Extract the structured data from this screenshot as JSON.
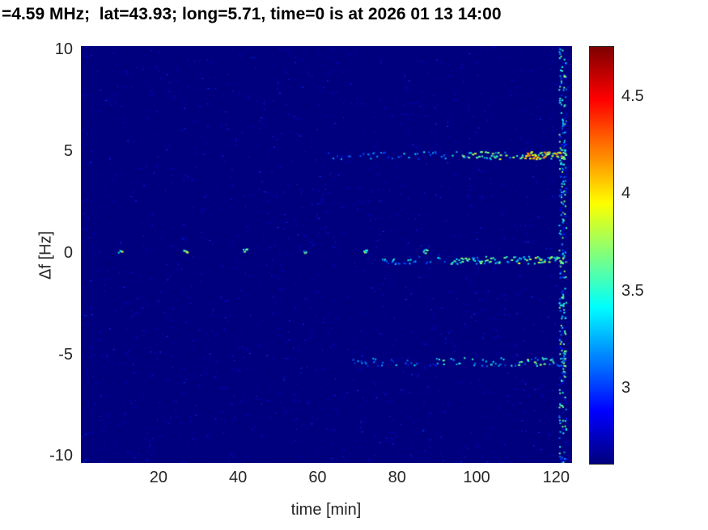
{
  "chart_data": {
    "type": "heatmap",
    "title": "=4.59 MHz;  lat=43.93; long=5.71, time=0 is at 2026 01 13 14:00",
    "xlabel": "time [min]",
    "ylabel": "Δf [Hz]",
    "xlim": [
      0.5,
      124
    ],
    "ylim": [
      -10.3,
      10.2
    ],
    "xticks": [
      20,
      40,
      60,
      80,
      100,
      120
    ],
    "yticks": [
      10,
      5,
      0,
      -5,
      -10
    ],
    "grid": false,
    "colorbar": {
      "colormap": "jet",
      "vmin": 2.62,
      "vmax": 4.76,
      "ticks": [
        4.5,
        4,
        3.5,
        3
      ],
      "position": "right"
    },
    "background_value": 2.62,
    "noise": {
      "count": 2600,
      "vmin": 2.66,
      "vmax": 3.02
    },
    "edge_artifact": {
      "x0": 120.6,
      "x1": 122.4,
      "count": 280,
      "vmin": 2.8,
      "vmax": 3.8
    },
    "streaks": [
      {
        "name": "upper-doppler-line",
        "y": 4.85,
        "y_jitter": 0.18,
        "segments": [
          {
            "x0": 62,
            "x1": 78,
            "density": 0.22,
            "vmin": 2.85,
            "vmax": 3.35
          },
          {
            "x0": 78,
            "x1": 96,
            "density": 0.32,
            "vmin": 2.95,
            "vmax": 3.55
          },
          {
            "x0": 96,
            "x1": 112,
            "density": 0.5,
            "vmin": 3.15,
            "vmax": 3.9
          },
          {
            "x0": 112,
            "x1": 122.3,
            "density": 0.85,
            "vmin": 3.5,
            "vmax": 4.25
          }
        ]
      },
      {
        "name": "carrier-pulse-dots",
        "y": 0.15,
        "y_jitter": 0.1,
        "segments": [
          {
            "x0": 9.6,
            "x1": 10.6,
            "density": 0.9,
            "vmin": 3.3,
            "vmax": 3.9
          },
          {
            "x0": 26.2,
            "x1": 27.2,
            "density": 0.9,
            "vmin": 3.3,
            "vmax": 3.9
          },
          {
            "x0": 41.2,
            "x1": 42.2,
            "density": 0.9,
            "vmin": 3.2,
            "vmax": 3.8
          },
          {
            "x0": 56.2,
            "x1": 57.2,
            "density": 0.9,
            "vmin": 3.2,
            "vmax": 3.8
          },
          {
            "x0": 71.5,
            "x1": 72.5,
            "density": 0.9,
            "vmin": 3.3,
            "vmax": 3.9
          },
          {
            "x0": 86.5,
            "x1": 87.5,
            "density": 0.9,
            "vmin": 3.3,
            "vmax": 3.9
          }
        ]
      },
      {
        "name": "carrier-line",
        "y": -0.3,
        "y_jitter": 0.18,
        "segments": [
          {
            "x0": 75,
            "x1": 93,
            "density": 0.28,
            "vmin": 2.95,
            "vmax": 3.5
          },
          {
            "x0": 93,
            "x1": 110,
            "density": 0.5,
            "vmin": 3.1,
            "vmax": 3.75
          },
          {
            "x0": 110,
            "x1": 122.3,
            "density": 0.65,
            "vmin": 3.2,
            "vmax": 3.95
          }
        ]
      },
      {
        "name": "lower-doppler-line",
        "y": -5.3,
        "y_jitter": 0.2,
        "segments": [
          {
            "x0": 68,
            "x1": 90,
            "density": 0.22,
            "vmin": 2.9,
            "vmax": 3.4
          },
          {
            "x0": 90,
            "x1": 112,
            "density": 0.38,
            "vmin": 3.0,
            "vmax": 3.65
          },
          {
            "x0": 112,
            "x1": 122.3,
            "density": 0.5,
            "vmin": 3.05,
            "vmax": 3.8
          }
        ]
      }
    ]
  }
}
